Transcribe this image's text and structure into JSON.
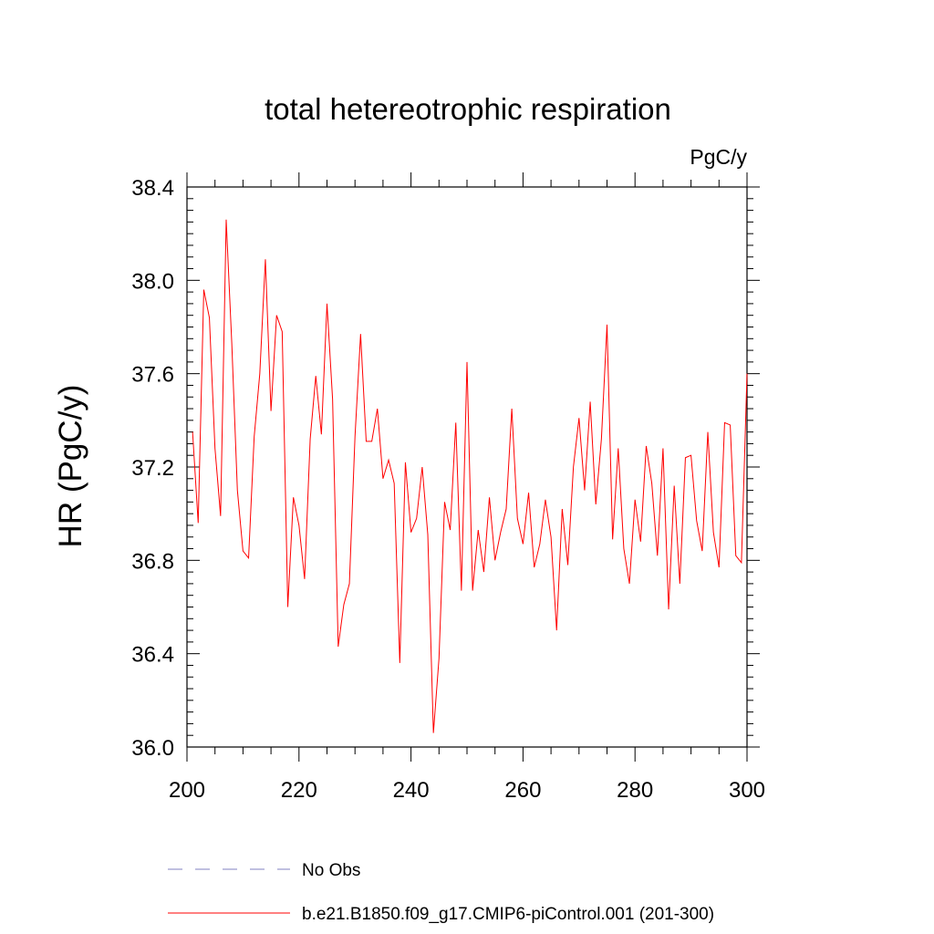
{
  "chart_data": {
    "type": "line",
    "title": "total hetereotrophic respiration",
    "units_label": "PgC/y",
    "ylabel": "HR  (PgC/y)",
    "xlabel": "",
    "xlim": [
      200,
      300
    ],
    "ylim": [
      36.0,
      38.4
    ],
    "x_ticks": [
      200,
      220,
      240,
      260,
      280,
      300
    ],
    "x_tick_labels": [
      "200",
      "220",
      "240",
      "260",
      "280",
      "300"
    ],
    "y_ticks": [
      36.0,
      36.4,
      36.8,
      37.2,
      37.6,
      38.0,
      38.4
    ],
    "y_tick_labels": [
      "36.0",
      "36.4",
      "36.8",
      "37.2",
      "37.6",
      "38.0",
      "38.4"
    ],
    "grid": false,
    "legend_position": "bottom",
    "series": [
      {
        "name": "No Obs",
        "style": "dashed",
        "color": "#8080c0",
        "x": [],
        "values": []
      },
      {
        "name": "b.e21.B1850.f09_g17.CMIP6-piControl.001 (201-300)",
        "style": "solid",
        "color": "#ff0000",
        "x": [
          201,
          202,
          203,
          204,
          205,
          206,
          207,
          208,
          209,
          210,
          211,
          212,
          213,
          214,
          215,
          216,
          217,
          218,
          219,
          220,
          221,
          222,
          223,
          224,
          225,
          226,
          227,
          228,
          229,
          230,
          231,
          232,
          233,
          234,
          235,
          236,
          237,
          238,
          239,
          240,
          241,
          242,
          243,
          244,
          245,
          246,
          247,
          248,
          249,
          250,
          251,
          252,
          253,
          254,
          255,
          256,
          257,
          258,
          259,
          260,
          261,
          262,
          263,
          264,
          265,
          266,
          267,
          268,
          269,
          270,
          271,
          272,
          273,
          274,
          275,
          276,
          277,
          278,
          279,
          280,
          281,
          282,
          283,
          284,
          285,
          286,
          287,
          288,
          289,
          290,
          291,
          292,
          293,
          294,
          295,
          296,
          297,
          298,
          299,
          300
        ],
        "values": [
          37.35,
          36.96,
          37.96,
          37.84,
          37.28,
          36.99,
          38.26,
          37.73,
          37.1,
          36.84,
          36.81,
          37.33,
          37.6,
          38.09,
          37.44,
          37.85,
          37.78,
          36.6,
          37.07,
          36.95,
          36.72,
          37.32,
          37.59,
          37.34,
          37.9,
          37.49,
          36.43,
          36.61,
          36.7,
          37.33,
          37.77,
          37.31,
          37.31,
          37.45,
          37.15,
          37.23,
          37.13,
          36.36,
          37.22,
          36.92,
          36.98,
          37.2,
          36.91,
          36.06,
          36.38,
          37.05,
          36.93,
          37.39,
          36.67,
          37.65,
          36.67,
          36.93,
          36.75,
          37.07,
          36.8,
          36.92,
          37.02,
          37.45,
          36.98,
          36.87,
          37.09,
          36.77,
          36.87,
          37.06,
          36.9,
          36.5,
          37.02,
          36.78,
          37.2,
          37.41,
          37.1,
          37.48,
          37.04,
          37.32,
          37.81,
          36.89,
          37.28,
          36.85,
          36.7,
          37.06,
          36.88,
          37.29,
          37.13,
          36.82,
          37.28,
          36.59,
          37.12,
          36.7,
          37.24,
          37.25,
          36.97,
          36.84,
          37.35,
          36.92,
          36.77,
          37.39,
          37.38,
          36.82,
          36.79,
          37.6
        ]
      }
    ]
  }
}
